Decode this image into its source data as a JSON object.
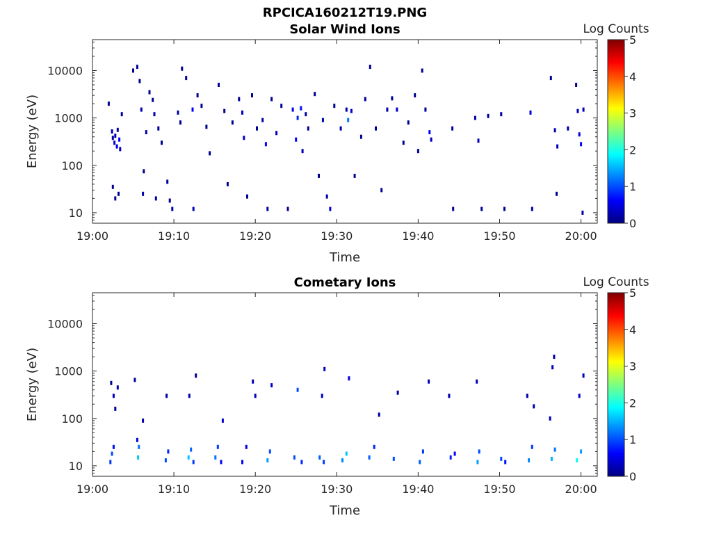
{
  "figure": {
    "title": "RPCICA160212T19.PNG"
  },
  "colormap": {
    "name": "jet",
    "stops": [
      "#00007f",
      "#0000ff",
      "#007fff",
      "#00ffff",
      "#7fff7f",
      "#ffff00",
      "#ff7f00",
      "#ff0000",
      "#7f0000"
    ]
  },
  "chart_data": [
    {
      "type": "heatmap",
      "title": "Solar Wind Ions",
      "xlabel": "Time",
      "ylabel": "Energy (eV)",
      "colorbar_label": "Log Counts",
      "xlim": [
        "19:00",
        "20:02"
      ],
      "ylim": [
        6,
        45000
      ],
      "y_scale": "log",
      "x_ticks": [
        "19:00",
        "19:10",
        "19:20",
        "19:30",
        "19:40",
        "19:50",
        "20:00"
      ],
      "y_ticks": [
        "10",
        "100",
        "1000",
        "10000"
      ],
      "clim": [
        0,
        5
      ],
      "colorbar_ticks": [
        "0",
        "1",
        "2",
        "3",
        "4",
        "5"
      ],
      "points_note": "each point: [minutes after 19:00, energy eV, log counts]",
      "points": [
        [
          2.0,
          2000,
          0.1
        ],
        [
          2.4,
          520,
          0.3
        ],
        [
          2.5,
          380,
          0.2
        ],
        [
          2.7,
          300,
          0.4
        ],
        [
          2.8,
          420,
          0.2
        ],
        [
          3.0,
          250,
          0.5
        ],
        [
          3.1,
          560,
          0.2
        ],
        [
          3.3,
          350,
          0.6
        ],
        [
          3.4,
          220,
          0.3
        ],
        [
          3.6,
          1200,
          0.2
        ],
        [
          2.5,
          35,
          0.1
        ],
        [
          2.8,
          20,
          0.1
        ],
        [
          3.2,
          25,
          0.1
        ],
        [
          5.0,
          10000,
          0.1
        ],
        [
          5.5,
          12000,
          0.1
        ],
        [
          5.8,
          6000,
          0.1
        ],
        [
          6.0,
          1500,
          0.2
        ],
        [
          6.2,
          25,
          0.2
        ],
        [
          6.3,
          75,
          0.1
        ],
        [
          6.6,
          500,
          0.2
        ],
        [
          7.0,
          3500,
          0.1
        ],
        [
          7.4,
          2400,
          0.1
        ],
        [
          7.6,
          1200,
          0.2
        ],
        [
          7.8,
          20,
          0.2
        ],
        [
          8.1,
          600,
          0.1
        ],
        [
          8.5,
          300,
          0.1
        ],
        [
          9.2,
          45,
          0.1
        ],
        [
          9.5,
          18,
          0.1
        ],
        [
          9.8,
          12,
          0.2
        ],
        [
          10.5,
          1300,
          0.2
        ],
        [
          10.8,
          800,
          0.1
        ],
        [
          11.0,
          11000,
          0.1
        ],
        [
          11.5,
          7000,
          0.1
        ],
        [
          12.3,
          1500,
          0.6
        ],
        [
          12.4,
          12,
          0.3
        ],
        [
          12.9,
          3000,
          0.1
        ],
        [
          13.4,
          1800,
          0.1
        ],
        [
          14.0,
          650,
          0.1
        ],
        [
          14.4,
          180,
          0.1
        ],
        [
          15.5,
          5000,
          0.1
        ],
        [
          16.2,
          1400,
          0.1
        ],
        [
          16.6,
          40,
          0.1
        ],
        [
          17.2,
          800,
          0.1
        ],
        [
          18.0,
          2500,
          0.1
        ],
        [
          18.4,
          1300,
          0.3
        ],
        [
          18.6,
          380,
          0.4
        ],
        [
          19.0,
          22,
          0.1
        ],
        [
          19.6,
          3000,
          0.1
        ],
        [
          20.2,
          600,
          0.1
        ],
        [
          20.9,
          900,
          0.2
        ],
        [
          21.3,
          280,
          0.6
        ],
        [
          21.5,
          12,
          0.2
        ],
        [
          22.0,
          2500,
          0.1
        ],
        [
          22.6,
          480,
          0.3
        ],
        [
          23.2,
          1800,
          0.1
        ],
        [
          24.0,
          12,
          0.1
        ],
        [
          24.6,
          1500,
          0.5
        ],
        [
          25.0,
          350,
          0.6
        ],
        [
          25.2,
          1000,
          0.8
        ],
        [
          25.6,
          1600,
          0.7
        ],
        [
          25.8,
          200,
          0.3
        ],
        [
          26.2,
          1200,
          0.2
        ],
        [
          26.5,
          600,
          0.1
        ],
        [
          27.3,
          3200,
          0.1
        ],
        [
          27.8,
          60,
          0.1
        ],
        [
          28.3,
          900,
          0.2
        ],
        [
          28.8,
          22,
          0.3
        ],
        [
          29.2,
          12,
          0.4
        ],
        [
          29.7,
          1800,
          0.1
        ],
        [
          30.5,
          600,
          0.2
        ],
        [
          31.2,
          1500,
          0.2
        ],
        [
          31.4,
          900,
          1.2
        ],
        [
          31.8,
          1400,
          0.4
        ],
        [
          32.2,
          60,
          0.1
        ],
        [
          33.0,
          400,
          0.1
        ],
        [
          33.5,
          2500,
          0.1
        ],
        [
          34.1,
          12000,
          0.1
        ],
        [
          34.8,
          600,
          0.1
        ],
        [
          35.5,
          30,
          0.1
        ],
        [
          36.2,
          1500,
          0.2
        ],
        [
          36.8,
          2600,
          0.1
        ],
        [
          37.4,
          1500,
          0.4
        ],
        [
          38.2,
          300,
          0.1
        ],
        [
          38.8,
          800,
          0.1
        ],
        [
          39.6,
          3000,
          0.1
        ],
        [
          40.0,
          200,
          0.1
        ],
        [
          40.5,
          10000,
          0.1
        ],
        [
          40.9,
          1500,
          0.1
        ],
        [
          41.4,
          500,
          0.6
        ],
        [
          41.6,
          350,
          0.3
        ],
        [
          44.2,
          600,
          0.2
        ],
        [
          44.3,
          12,
          0.1
        ],
        [
          47.0,
          1000,
          0.2
        ],
        [
          47.4,
          330,
          0.3
        ],
        [
          47.8,
          12,
          0.1
        ],
        [
          48.6,
          1100,
          0.1
        ],
        [
          50.2,
          1200,
          0.2
        ],
        [
          50.6,
          12,
          0.1
        ],
        [
          53.8,
          1300,
          0.4
        ],
        [
          54.0,
          12,
          0.2
        ],
        [
          56.3,
          7000,
          0.1
        ],
        [
          57.0,
          25,
          0.1
        ],
        [
          56.8,
          550,
          0.2
        ],
        [
          57.1,
          250,
          0.3
        ],
        [
          58.4,
          600,
          0.2
        ],
        [
          59.6,
          1400,
          0.3
        ],
        [
          59.8,
          450,
          0.5
        ],
        [
          60.0,
          280,
          0.6
        ],
        [
          60.3,
          1500,
          0.3
        ],
        [
          60.2,
          10,
          0.2
        ],
        [
          59.4,
          5000,
          0.1
        ]
      ]
    },
    {
      "type": "heatmap",
      "title": "Cometary Ions",
      "xlabel": "Time",
      "ylabel": "Energy (eV)",
      "colorbar_label": "Log Counts",
      "xlim": [
        "19:00",
        "20:02"
      ],
      "ylim": [
        6,
        45000
      ],
      "y_scale": "log",
      "x_ticks": [
        "19:00",
        "19:10",
        "19:20",
        "19:30",
        "19:40",
        "19:50",
        "20:00"
      ],
      "y_ticks": [
        "10",
        "100",
        "1000",
        "10000"
      ],
      "clim": [
        0,
        5
      ],
      "colorbar_ticks": [
        "0",
        "1",
        "2",
        "3",
        "4",
        "5"
      ],
      "points_note": "each point: [minutes after 19:00, energy eV, log counts]",
      "points": [
        [
          2.2,
          12,
          0.9
        ],
        [
          2.4,
          18,
          1.0
        ],
        [
          2.6,
          25,
          0.7
        ],
        [
          2.3,
          560,
          0.1
        ],
        [
          2.6,
          300,
          0.3
        ],
        [
          2.8,
          160,
          0.2
        ],
        [
          3.1,
          450,
          0.2
        ],
        [
          5.6,
          15,
          1.6
        ],
        [
          5.7,
          25,
          1.2
        ],
        [
          5.5,
          35,
          0.4
        ],
        [
          5.2,
          650,
          0.1
        ],
        [
          6.2,
          90,
          0.2
        ],
        [
          9.0,
          13,
          1.0
        ],
        [
          9.3,
          20,
          0.8
        ],
        [
          9.1,
          300,
          0.2
        ],
        [
          11.8,
          15,
          1.6
        ],
        [
          12.1,
          22,
          1.1
        ],
        [
          12.4,
          12,
          0.9
        ],
        [
          11.9,
          300,
          0.2
        ],
        [
          12.7,
          800,
          0.1
        ],
        [
          15.1,
          15,
          1.2
        ],
        [
          15.4,
          25,
          0.9
        ],
        [
          15.8,
          12,
          0.6
        ],
        [
          16.0,
          90,
          0.4
        ],
        [
          18.4,
          12,
          0.6
        ],
        [
          18.9,
          25,
          0.5
        ],
        [
          19.7,
          600,
          0.3
        ],
        [
          20.0,
          300,
          0.3
        ],
        [
          21.5,
          13,
          1.4
        ],
        [
          21.8,
          20,
          1.0
        ],
        [
          22.0,
          500,
          0.4
        ],
        [
          24.8,
          15,
          1.0
        ],
        [
          25.2,
          400,
          1.0
        ],
        [
          25.7,
          12,
          0.8
        ],
        [
          27.9,
          15,
          1.1
        ],
        [
          28.4,
          12,
          0.9
        ],
        [
          28.5,
          1100,
          0.3
        ],
        [
          28.2,
          300,
          0.4
        ],
        [
          30.7,
          13,
          1.3
        ],
        [
          31.2,
          18,
          1.6
        ],
        [
          31.5,
          700,
          0.5
        ],
        [
          34.0,
          15,
          1.1
        ],
        [
          34.6,
          25,
          0.8
        ],
        [
          35.2,
          120,
          0.2
        ],
        [
          37.0,
          14,
          1.0
        ],
        [
          37.5,
          350,
          0.2
        ],
        [
          40.2,
          12,
          1.1
        ],
        [
          40.6,
          20,
          0.9
        ],
        [
          41.3,
          600,
          0.3
        ],
        [
          44.0,
          15,
          0.8
        ],
        [
          44.5,
          18,
          0.6
        ],
        [
          43.8,
          300,
          0.2
        ],
        [
          47.3,
          12,
          1.4
        ],
        [
          47.5,
          20,
          1.0
        ],
        [
          47.2,
          600,
          0.3
        ],
        [
          50.2,
          14,
          1.0
        ],
        [
          50.7,
          12,
          0.7
        ],
        [
          53.6,
          13,
          1.3
        ],
        [
          54.0,
          25,
          0.9
        ],
        [
          53.4,
          300,
          0.2
        ],
        [
          54.2,
          180,
          0.2
        ],
        [
          56.4,
          14,
          1.5
        ],
        [
          56.8,
          22,
          1.2
        ],
        [
          56.5,
          1200,
          0.3
        ],
        [
          56.7,
          2000,
          0.2
        ],
        [
          56.2,
          100,
          0.3
        ],
        [
          59.5,
          13,
          1.9
        ],
        [
          60.0,
          20,
          1.4
        ],
        [
          59.8,
          300,
          0.4
        ],
        [
          60.3,
          800,
          0.3
        ]
      ]
    }
  ]
}
